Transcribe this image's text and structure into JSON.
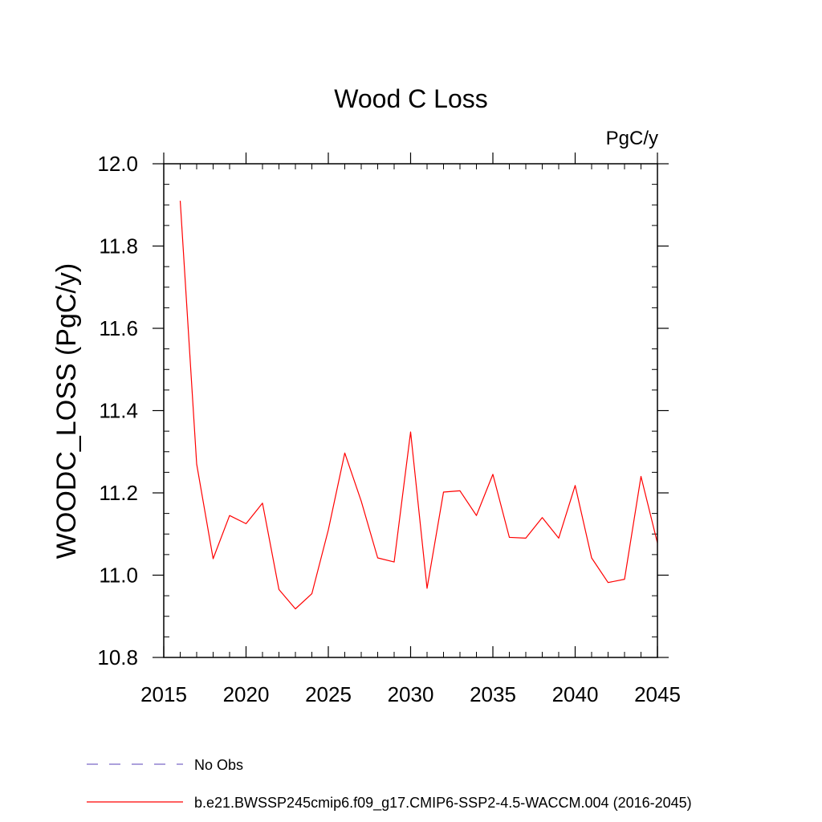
{
  "chart_data": {
    "type": "line",
    "title": "Wood C Loss",
    "units_label": "PgC/y",
    "ylabel": "WOODC_LOSS  (PgC/y)",
    "xlabel": "",
    "xlim": [
      2015,
      2045
    ],
    "ylim": [
      10.8,
      12.0
    ],
    "x_ticks": [
      2015,
      2020,
      2025,
      2030,
      2035,
      2040,
      2045
    ],
    "y_ticks": [
      "10.8",
      "11.0",
      "11.2",
      "11.4",
      "11.6",
      "11.8",
      "12.0"
    ],
    "x_minor_step": 1,
    "y_minor_step": 0.05,
    "grid": false,
    "legend_position": "bottom-left",
    "series": [
      {
        "name": "b.e21.BWSSP245cmip6.f09_g17.CMIP6-SSP2-4.5-WACCM.004 (2016-2045)",
        "color": "#ff0000",
        "style": "solid",
        "x": [
          2016,
          2017,
          2018,
          2019,
          2020,
          2021,
          2022,
          2023,
          2024,
          2025,
          2026,
          2027,
          2028,
          2029,
          2030,
          2031,
          2032,
          2033,
          2034,
          2035,
          2036,
          2037,
          2038,
          2039,
          2040,
          2041,
          2042,
          2043,
          2044,
          2045
        ],
        "values": [
          11.91,
          11.27,
          11.04,
          11.145,
          11.125,
          11.175,
          10.965,
          10.918,
          10.955,
          11.11,
          11.297,
          11.18,
          11.042,
          11.032,
          11.348,
          10.968,
          11.202,
          11.205,
          11.145,
          11.245,
          11.092,
          11.09,
          11.14,
          11.09,
          11.218,
          11.042,
          10.982,
          10.99,
          11.24,
          11.078
        ]
      }
    ],
    "legend": [
      {
        "label": "No Obs",
        "color": "#7b68c8",
        "style": "dashed"
      },
      {
        "label": "b.e21.BWSSP245cmip6.f09_g17.CMIP6-SSP2-4.5-WACCM.004 (2016-2045)",
        "color": "#ff0000",
        "style": "solid"
      }
    ]
  }
}
